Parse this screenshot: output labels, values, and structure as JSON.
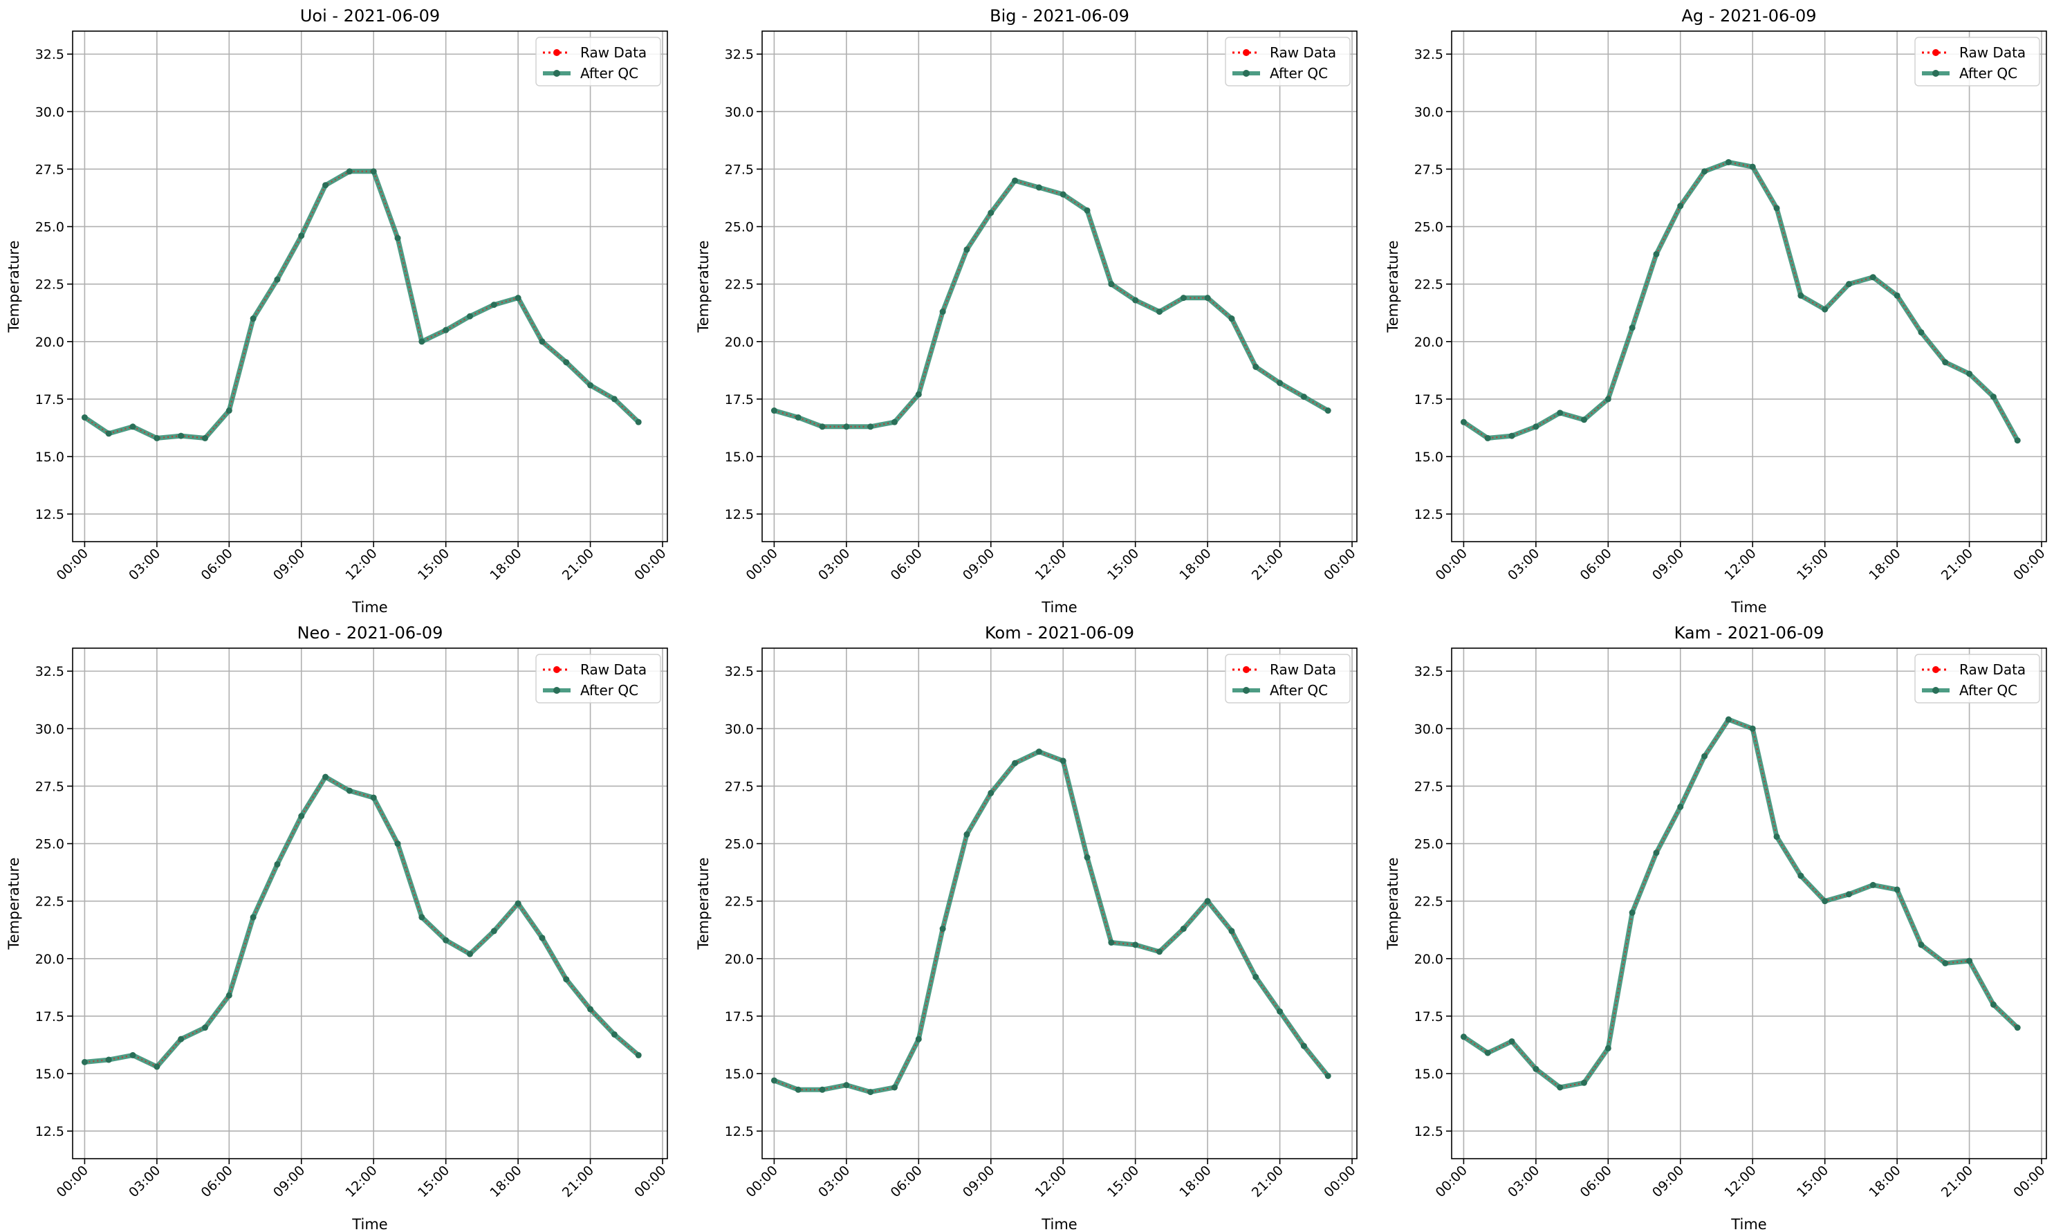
{
  "figure": {
    "background": "#ffffff"
  },
  "legend_labels": {
    "raw": "Raw Data",
    "qc": "After QC"
  },
  "colors": {
    "raw": "#ff0000",
    "qc": "#2e8b6e",
    "grid": "#b0b0b0",
    "axis": "#000000"
  },
  "chart_data": [
    {
      "type": "line",
      "title": "Uoi - 2021-06-09",
      "xlabel": "Time",
      "ylabel": "Temperature",
      "xticks": [
        "00:00",
        "03:00",
        "06:00",
        "09:00",
        "12:00",
        "15:00",
        "18:00",
        "21:00",
        "00:00"
      ],
      "xlim_hours": [
        -0.5,
        24.2
      ],
      "ylim": [
        11.3,
        33.5
      ],
      "yticks": [
        "12.5",
        "15.0",
        "17.5",
        "20.0",
        "22.5",
        "25.0",
        "27.5",
        "30.0",
        "32.5"
      ],
      "grid": true,
      "legend_position": "top-right",
      "x": [
        0,
        1,
        2,
        3,
        4,
        5,
        6,
        7,
        8,
        9,
        10,
        11,
        12,
        13,
        14,
        15,
        16,
        17,
        18,
        19,
        20,
        21,
        22,
        23
      ],
      "series": [
        {
          "name": "Raw Data",
          "values": [
            16.7,
            16.0,
            16.3,
            15.8,
            15.9,
            15.8,
            17.0,
            21.0,
            22.7,
            24.6,
            26.8,
            27.4,
            27.4,
            24.5,
            20.0,
            20.5,
            21.1,
            21.6,
            21.9,
            20.0,
            19.1,
            18.1,
            17.5,
            16.5
          ]
        },
        {
          "name": "After QC",
          "values": [
            16.7,
            16.0,
            16.3,
            15.8,
            15.9,
            15.8,
            17.0,
            21.0,
            22.7,
            24.6,
            26.8,
            27.4,
            27.4,
            24.5,
            20.0,
            20.5,
            21.1,
            21.6,
            21.9,
            20.0,
            19.1,
            18.1,
            17.5,
            16.5
          ]
        }
      ]
    },
    {
      "type": "line",
      "title": "Big - 2021-06-09",
      "xlabel": "Time",
      "ylabel": "Temperature",
      "xticks": [
        "00:00",
        "03:00",
        "06:00",
        "09:00",
        "12:00",
        "15:00",
        "18:00",
        "21:00",
        "00:00"
      ],
      "xlim_hours": [
        -0.5,
        24.2
      ],
      "ylim": [
        11.3,
        33.5
      ],
      "yticks": [
        "12.5",
        "15.0",
        "17.5",
        "20.0",
        "22.5",
        "25.0",
        "27.5",
        "30.0",
        "32.5"
      ],
      "grid": true,
      "legend_position": "top-right",
      "x": [
        0,
        1,
        2,
        3,
        4,
        5,
        6,
        7,
        8,
        9,
        10,
        11,
        12,
        13,
        14,
        15,
        16,
        17,
        18,
        19,
        20,
        21,
        22,
        23
      ],
      "series": [
        {
          "name": "Raw Data",
          "values": [
            17.0,
            16.7,
            16.3,
            16.3,
            16.3,
            16.5,
            17.7,
            21.3,
            24.0,
            25.6,
            27.0,
            26.7,
            26.4,
            25.7,
            22.5,
            21.8,
            21.3,
            21.9,
            21.9,
            21.0,
            18.9,
            18.2,
            17.6,
            17.0
          ]
        },
        {
          "name": "After QC",
          "values": [
            17.0,
            16.7,
            16.3,
            16.3,
            16.3,
            16.5,
            17.7,
            21.3,
            24.0,
            25.6,
            27.0,
            26.7,
            26.4,
            25.7,
            22.5,
            21.8,
            21.3,
            21.9,
            21.9,
            21.0,
            18.9,
            18.2,
            17.6,
            17.0
          ]
        }
      ]
    },
    {
      "type": "line",
      "title": "Ag - 2021-06-09",
      "xlabel": "Time",
      "ylabel": "Temperature",
      "xticks": [
        "00:00",
        "03:00",
        "06:00",
        "09:00",
        "12:00",
        "15:00",
        "18:00",
        "21:00",
        "00:00"
      ],
      "xlim_hours": [
        -0.5,
        24.2
      ],
      "ylim": [
        11.3,
        33.5
      ],
      "yticks": [
        "12.5",
        "15.0",
        "17.5",
        "20.0",
        "22.5",
        "25.0",
        "27.5",
        "30.0",
        "32.5"
      ],
      "grid": true,
      "legend_position": "top-right",
      "x": [
        0,
        1,
        2,
        3,
        4,
        5,
        6,
        7,
        8,
        9,
        10,
        11,
        12,
        13,
        14,
        15,
        16,
        17,
        18,
        19,
        20,
        21,
        22,
        23
      ],
      "series": [
        {
          "name": "Raw Data",
          "values": [
            16.5,
            15.8,
            15.9,
            16.3,
            16.9,
            16.6,
            17.5,
            20.6,
            23.8,
            25.9,
            27.4,
            27.8,
            27.6,
            25.8,
            22.0,
            21.4,
            22.5,
            22.8,
            22.0,
            20.4,
            19.1,
            18.6,
            17.6,
            15.7
          ]
        },
        {
          "name": "After QC",
          "values": [
            16.5,
            15.8,
            15.9,
            16.3,
            16.9,
            16.6,
            17.5,
            20.6,
            23.8,
            25.9,
            27.4,
            27.8,
            27.6,
            25.8,
            22.0,
            21.4,
            22.5,
            22.8,
            22.0,
            20.4,
            19.1,
            18.6,
            17.6,
            15.7
          ]
        }
      ]
    },
    {
      "type": "line",
      "title": "Neo - 2021-06-09",
      "xlabel": "Time",
      "ylabel": "Temperature",
      "xticks": [
        "00:00",
        "03:00",
        "06:00",
        "09:00",
        "12:00",
        "15:00",
        "18:00",
        "21:00",
        "00:00"
      ],
      "xlim_hours": [
        -0.5,
        24.2
      ],
      "ylim": [
        11.3,
        33.5
      ],
      "yticks": [
        "12.5",
        "15.0",
        "17.5",
        "20.0",
        "22.5",
        "25.0",
        "27.5",
        "30.0",
        "32.5"
      ],
      "grid": true,
      "legend_position": "top-right",
      "x": [
        0,
        1,
        2,
        3,
        4,
        5,
        6,
        7,
        8,
        9,
        10,
        11,
        12,
        13,
        14,
        15,
        16,
        17,
        18,
        19,
        20,
        21,
        22,
        23
      ],
      "series": [
        {
          "name": "Raw Data",
          "values": [
            15.5,
            15.6,
            15.8,
            15.3,
            16.5,
            17.0,
            18.4,
            21.8,
            24.1,
            26.2,
            27.9,
            27.3,
            27.0,
            25.0,
            21.8,
            20.8,
            20.2,
            21.2,
            22.4,
            20.9,
            19.1,
            17.8,
            16.7,
            15.8
          ]
        },
        {
          "name": "After QC",
          "values": [
            15.5,
            15.6,
            15.8,
            15.3,
            16.5,
            17.0,
            18.4,
            21.8,
            24.1,
            26.2,
            27.9,
            27.3,
            27.0,
            25.0,
            21.8,
            20.8,
            20.2,
            21.2,
            22.4,
            20.9,
            19.1,
            17.8,
            16.7,
            15.8
          ]
        }
      ]
    },
    {
      "type": "line",
      "title": "Kom - 2021-06-09",
      "xlabel": "Time",
      "ylabel": "Temperature",
      "xticks": [
        "00:00",
        "03:00",
        "06:00",
        "09:00",
        "12:00",
        "15:00",
        "18:00",
        "21:00",
        "00:00"
      ],
      "xlim_hours": [
        -0.5,
        24.2
      ],
      "ylim": [
        11.3,
        33.5
      ],
      "yticks": [
        "12.5",
        "15.0",
        "17.5",
        "20.0",
        "22.5",
        "25.0",
        "27.5",
        "30.0",
        "32.5"
      ],
      "grid": true,
      "legend_position": "top-right",
      "x": [
        0,
        1,
        2,
        3,
        4,
        5,
        6,
        7,
        8,
        9,
        10,
        11,
        12,
        13,
        14,
        15,
        16,
        17,
        18,
        19,
        20,
        21,
        22,
        23
      ],
      "series": [
        {
          "name": "Raw Data",
          "values": [
            14.7,
            14.3,
            14.3,
            14.5,
            14.2,
            14.4,
            16.5,
            21.3,
            25.4,
            27.2,
            28.5,
            29.0,
            28.6,
            24.4,
            20.7,
            20.6,
            20.3,
            21.3,
            22.5,
            21.2,
            19.2,
            17.7,
            16.2,
            14.9
          ]
        },
        {
          "name": "After QC",
          "values": [
            14.7,
            14.3,
            14.3,
            14.5,
            14.2,
            14.4,
            16.5,
            21.3,
            25.4,
            27.2,
            28.5,
            29.0,
            28.6,
            24.4,
            20.7,
            20.6,
            20.3,
            21.3,
            22.5,
            21.2,
            19.2,
            17.7,
            16.2,
            14.9
          ]
        }
      ]
    },
    {
      "type": "line",
      "title": "Kam - 2021-06-09",
      "xlabel": "Time",
      "ylabel": "Temperature",
      "xticks": [
        "00:00",
        "03:00",
        "06:00",
        "09:00",
        "12:00",
        "15:00",
        "18:00",
        "21:00",
        "00:00"
      ],
      "xlim_hours": [
        -0.5,
        24.2
      ],
      "ylim": [
        11.3,
        33.5
      ],
      "yticks": [
        "12.5",
        "15.0",
        "17.5",
        "20.0",
        "22.5",
        "25.0",
        "27.5",
        "30.0",
        "32.5"
      ],
      "grid": true,
      "legend_position": "top-right",
      "x": [
        0,
        1,
        2,
        3,
        4,
        5,
        6,
        7,
        8,
        9,
        10,
        11,
        12,
        13,
        14,
        15,
        16,
        17,
        18,
        19,
        20,
        21,
        22,
        23
      ],
      "series": [
        {
          "name": "Raw Data",
          "values": [
            16.6,
            15.9,
            16.4,
            15.2,
            14.4,
            14.6,
            16.1,
            22.0,
            24.6,
            26.6,
            28.8,
            30.4,
            30.0,
            25.3,
            23.6,
            22.5,
            22.8,
            23.2,
            23.0,
            20.6,
            19.8,
            19.9,
            18.0,
            17.0
          ]
        },
        {
          "name": "After QC",
          "values": [
            16.6,
            15.9,
            16.4,
            15.2,
            14.4,
            14.6,
            16.1,
            22.0,
            24.6,
            26.6,
            28.8,
            30.4,
            30.0,
            25.3,
            23.6,
            22.5,
            22.8,
            23.2,
            23.0,
            20.6,
            19.8,
            19.9,
            18.0,
            17.0
          ]
        }
      ]
    }
  ]
}
